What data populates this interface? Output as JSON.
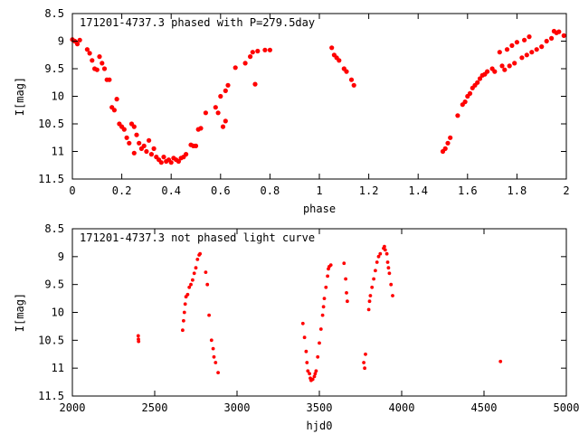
{
  "chart_data": [
    {
      "type": "scatter",
      "title": "171201-4737.3 phased with P=279.5day",
      "xlabel": "phase",
      "ylabel": "I[mag]",
      "xlim": [
        0,
        2
      ],
      "ylim": [
        8.5,
        11.5
      ],
      "y_inverted": true,
      "grid": false,
      "x_ticks": [
        "0",
        "0.2",
        "0.4",
        "0.6",
        "0.8",
        "1",
        "1.2",
        "1.4",
        "1.6",
        "1.8",
        "2"
      ],
      "y_ticks": [
        "8.5",
        "9",
        "9.5",
        "10",
        "10.5",
        "11",
        "11.5"
      ],
      "marker_color": "#ff0000",
      "points": [
        [
          0.0,
          8.97
        ],
        [
          0.01,
          9.0
        ],
        [
          0.02,
          9.05
        ],
        [
          0.03,
          8.98
        ],
        [
          0.06,
          9.15
        ],
        [
          0.07,
          9.22
        ],
        [
          0.08,
          9.35
        ],
        [
          0.09,
          9.5
        ],
        [
          0.1,
          9.52
        ],
        [
          0.11,
          9.28
        ],
        [
          0.12,
          9.4
        ],
        [
          0.13,
          9.5
        ],
        [
          0.14,
          9.7
        ],
        [
          0.15,
          9.7
        ],
        [
          0.16,
          10.2
        ],
        [
          0.17,
          10.25
        ],
        [
          0.18,
          10.05
        ],
        [
          0.19,
          10.5
        ],
        [
          0.2,
          10.55
        ],
        [
          0.21,
          10.6
        ],
        [
          0.22,
          10.75
        ],
        [
          0.23,
          10.85
        ],
        [
          0.24,
          10.5
        ],
        [
          0.25,
          10.55
        ],
        [
          0.25,
          11.03
        ],
        [
          0.26,
          10.7
        ],
        [
          0.27,
          10.85
        ],
        [
          0.28,
          10.95
        ],
        [
          0.29,
          10.9
        ],
        [
          0.3,
          11.0
        ],
        [
          0.31,
          10.8
        ],
        [
          0.32,
          11.05
        ],
        [
          0.33,
          10.95
        ],
        [
          0.34,
          11.1
        ],
        [
          0.35,
          11.15
        ],
        [
          0.36,
          11.2
        ],
        [
          0.37,
          11.1
        ],
        [
          0.38,
          11.18
        ],
        [
          0.39,
          11.15
        ],
        [
          0.4,
          11.2
        ],
        [
          0.41,
          11.12
        ],
        [
          0.42,
          11.15
        ],
        [
          0.43,
          11.18
        ],
        [
          0.44,
          11.12
        ],
        [
          0.45,
          11.1
        ],
        [
          0.46,
          11.05
        ],
        [
          0.48,
          10.88
        ],
        [
          0.49,
          10.9
        ],
        [
          0.5,
          10.9
        ],
        [
          0.51,
          10.6
        ],
        [
          0.52,
          10.58
        ],
        [
          0.54,
          10.3
        ],
        [
          0.58,
          10.2
        ],
        [
          0.59,
          10.3
        ],
        [
          0.6,
          10.0
        ],
        [
          0.61,
          10.55
        ],
        [
          0.62,
          9.9
        ],
        [
          0.62,
          10.45
        ],
        [
          0.63,
          9.8
        ],
        [
          0.66,
          9.48
        ],
        [
          0.7,
          9.4
        ],
        [
          0.72,
          9.28
        ],
        [
          0.73,
          9.2
        ],
        [
          0.74,
          9.78
        ],
        [
          0.75,
          9.18
        ],
        [
          0.78,
          9.16
        ],
        [
          0.8,
          9.16
        ],
        [
          1.05,
          9.12
        ],
        [
          1.06,
          9.25
        ],
        [
          1.07,
          9.3
        ],
        [
          1.08,
          9.35
        ],
        [
          1.1,
          9.5
        ],
        [
          1.11,
          9.55
        ],
        [
          1.13,
          9.7
        ],
        [
          1.14,
          9.8
        ],
        [
          1.5,
          11.0
        ],
        [
          1.51,
          10.95
        ],
        [
          1.52,
          10.85
        ],
        [
          1.53,
          10.75
        ],
        [
          1.56,
          10.35
        ],
        [
          1.58,
          10.15
        ],
        [
          1.59,
          10.1
        ],
        [
          1.6,
          10.0
        ],
        [
          1.61,
          9.95
        ],
        [
          1.62,
          9.85
        ],
        [
          1.63,
          9.8
        ],
        [
          1.64,
          9.75
        ],
        [
          1.65,
          9.68
        ],
        [
          1.66,
          9.62
        ],
        [
          1.67,
          9.6
        ],
        [
          1.68,
          9.55
        ],
        [
          1.7,
          9.5
        ],
        [
          1.71,
          9.55
        ],
        [
          1.73,
          9.2
        ],
        [
          1.74,
          9.45
        ],
        [
          1.75,
          9.52
        ],
        [
          1.76,
          9.15
        ],
        [
          1.77,
          9.45
        ],
        [
          1.78,
          9.08
        ],
        [
          1.79,
          9.4
        ],
        [
          1.8,
          9.02
        ],
        [
          1.82,
          9.3
        ],
        [
          1.83,
          8.98
        ],
        [
          1.84,
          9.25
        ],
        [
          1.85,
          8.92
        ],
        [
          1.86,
          9.2
        ],
        [
          1.88,
          9.15
        ],
        [
          1.9,
          9.1
        ],
        [
          1.92,
          9.0
        ],
        [
          1.94,
          8.95
        ],
        [
          1.95,
          8.82
        ],
        [
          1.96,
          8.85
        ],
        [
          1.97,
          8.83
        ],
        [
          1.99,
          8.9
        ]
      ]
    },
    {
      "type": "scatter",
      "title": "171201-4737.3 not phased light curve",
      "xlabel": "hjd0",
      "ylabel": "I[mag]",
      "xlim": [
        2000,
        5000
      ],
      "ylim": [
        8.5,
        11.5
      ],
      "y_inverted": true,
      "grid": false,
      "x_ticks": [
        "2000",
        "2500",
        "3000",
        "3500",
        "4000",
        "4500",
        "5000"
      ],
      "y_ticks": [
        "8.5",
        "9",
        "9.5",
        "10",
        "10.5",
        "11",
        "11.5"
      ],
      "marker_color": "#ff0000",
      "points": [
        [
          2400,
          10.42
        ],
        [
          2401,
          10.48
        ],
        [
          2402,
          10.52
        ],
        [
          2670,
          10.32
        ],
        [
          2675,
          10.15
        ],
        [
          2680,
          10.0
        ],
        [
          2685,
          9.85
        ],
        [
          2690,
          9.72
        ],
        [
          2700,
          9.68
        ],
        [
          2710,
          9.55
        ],
        [
          2720,
          9.5
        ],
        [
          2730,
          9.42
        ],
        [
          2740,
          9.3
        ],
        [
          2750,
          9.2
        ],
        [
          2760,
          9.05
        ],
        [
          2770,
          8.97
        ],
        [
          2775,
          8.95
        ],
        [
          2810,
          9.28
        ],
        [
          2820,
          9.5
        ],
        [
          2830,
          10.05
        ],
        [
          2845,
          10.5
        ],
        [
          2855,
          10.65
        ],
        [
          2860,
          10.8
        ],
        [
          2870,
          10.9
        ],
        [
          2885,
          11.08
        ],
        [
          3400,
          10.2
        ],
        [
          3410,
          10.45
        ],
        [
          3420,
          10.7
        ],
        [
          3425,
          10.9
        ],
        [
          3430,
          11.05
        ],
        [
          3440,
          11.1
        ],
        [
          3445,
          11.18
        ],
        [
          3450,
          11.22
        ],
        [
          3460,
          11.2
        ],
        [
          3470,
          11.15
        ],
        [
          3475,
          11.1
        ],
        [
          3480,
          11.05
        ],
        [
          3490,
          10.8
        ],
        [
          3500,
          10.55
        ],
        [
          3510,
          10.3
        ],
        [
          3520,
          10.05
        ],
        [
          3525,
          9.9
        ],
        [
          3530,
          9.75
        ],
        [
          3540,
          9.55
        ],
        [
          3550,
          9.35
        ],
        [
          3555,
          9.22
        ],
        [
          3560,
          9.18
        ],
        [
          3570,
          9.15
        ],
        [
          3650,
          9.12
        ],
        [
          3660,
          9.4
        ],
        [
          3665,
          9.65
        ],
        [
          3670,
          9.8
        ],
        [
          3770,
          10.9
        ],
        [
          3775,
          11.0
        ],
        [
          3780,
          10.75
        ],
        [
          3800,
          9.95
        ],
        [
          3805,
          9.8
        ],
        [
          3810,
          9.7
        ],
        [
          3820,
          9.55
        ],
        [
          3830,
          9.4
        ],
        [
          3840,
          9.25
        ],
        [
          3850,
          9.1
        ],
        [
          3860,
          9.0
        ],
        [
          3870,
          8.95
        ],
        [
          3890,
          8.85
        ],
        [
          3895,
          8.82
        ],
        [
          3900,
          8.88
        ],
        [
          3910,
          8.95
        ],
        [
          3915,
          9.1
        ],
        [
          3920,
          9.2
        ],
        [
          3925,
          9.3
        ],
        [
          3935,
          9.5
        ],
        [
          3945,
          9.7
        ],
        [
          4600,
          10.88
        ]
      ]
    }
  ]
}
